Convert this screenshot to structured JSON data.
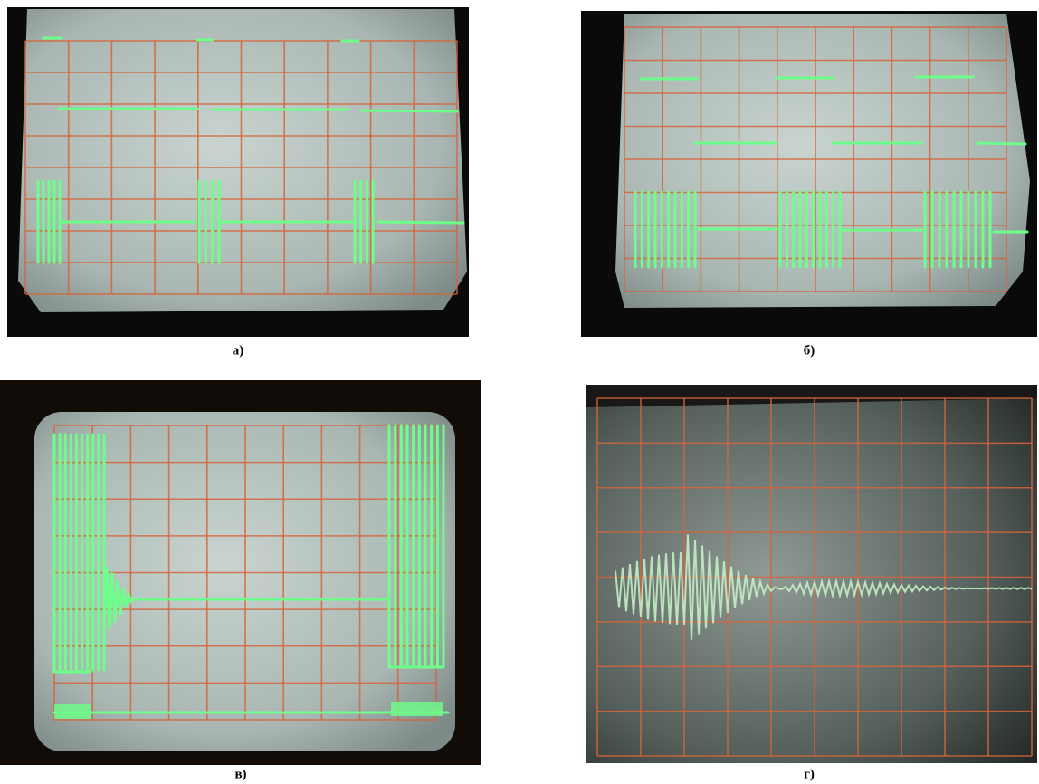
{
  "panels": [
    {
      "caption": "а)"
    },
    {
      "caption": "б)"
    },
    {
      "caption": "в)"
    },
    {
      "caption": "г)"
    }
  ]
}
